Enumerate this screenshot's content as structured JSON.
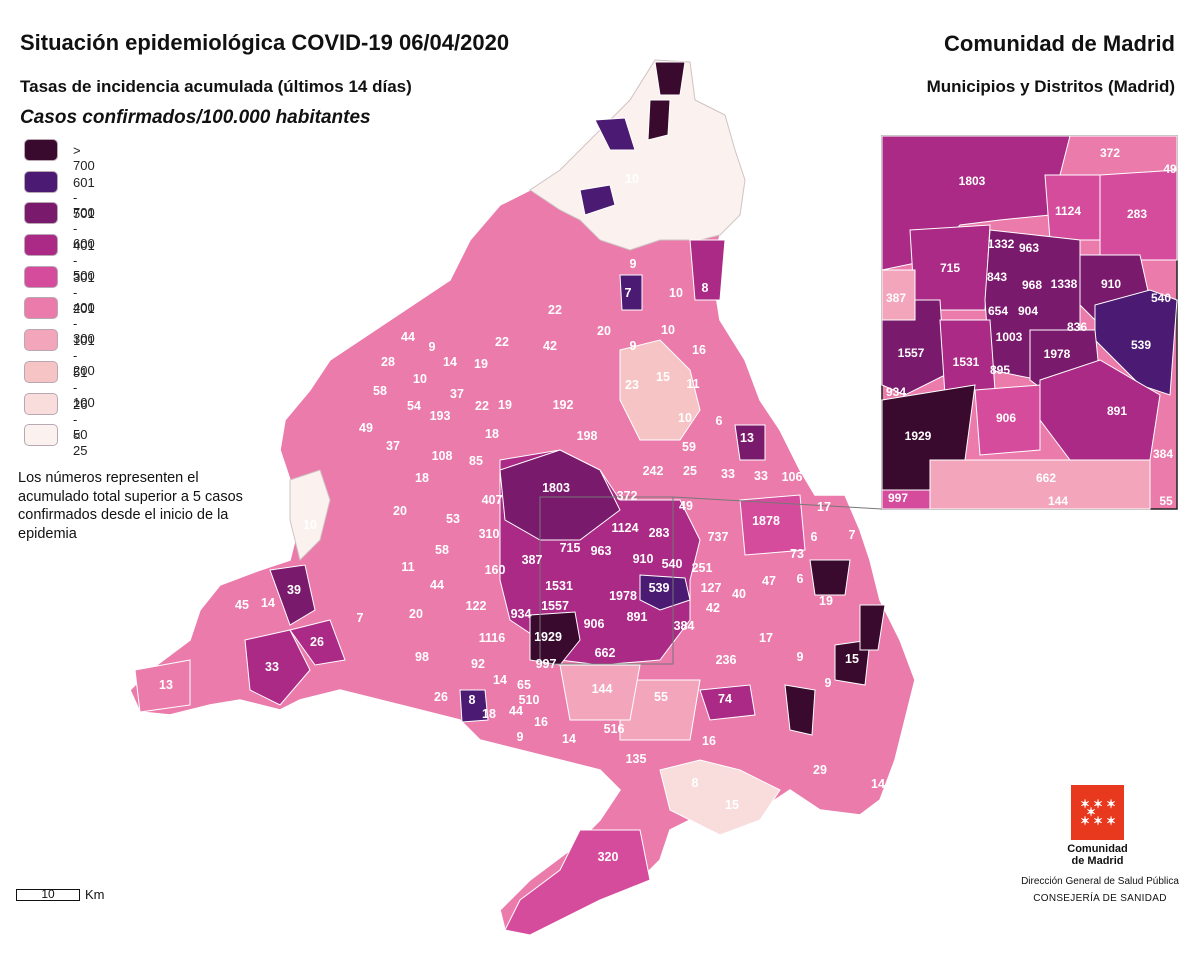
{
  "header": {
    "title": "Situación epidemiológica COVID-19  06/04/2020",
    "subtitle": "Tasas de incidencia acumulada (últimos 14 días)",
    "units": "Casos confirmados/100.000 habitantes",
    "region": "Comunidad de Madrid",
    "region_sub": "Municipios y Distritos (Madrid)"
  },
  "legend": [
    {
      "label": "> 700",
      "color": "#3a0a2e"
    },
    {
      "label": "601 - 700",
      "color": "#4b1a72"
    },
    {
      "label": "501 - 600",
      "color": "#7a1a6c"
    },
    {
      "label": "401 - 500",
      "color": "#aa2a86"
    },
    {
      "label": "301 - 400",
      "color": "#d64c9d"
    },
    {
      "label": "201 - 300",
      "color": "#ea7bab"
    },
    {
      "label": "101 - 200",
      "color": "#f2a5bb"
    },
    {
      "label": "51 - 100",
      "color": "#f6c4c4"
    },
    {
      "label": "26 - 50",
      "color": "#f9dcdc"
    },
    {
      "label": "< 25",
      "color": "#fbf2ef"
    }
  ],
  "note": "Los números representen el acumulado total superior a 5 casos confirmados desde el inicio de la epidemia",
  "scale": {
    "value": "10",
    "unit": "Km"
  },
  "logo": {
    "name_line1": "Comunidad",
    "name_line2": "de Madrid"
  },
  "org": {
    "line1": "Dirección General de Salud Pública",
    "line2": "CONSEJERÍA DE SANIDAD"
  },
  "map_labels": [
    "10",
    "9",
    "7",
    "8",
    "10",
    "22",
    "20",
    "42",
    "9",
    "10",
    "16",
    "44",
    "9",
    "28",
    "10",
    "14",
    "19",
    "22",
    "58",
    "54",
    "37",
    "22",
    "19",
    "193",
    "23",
    "15",
    "11",
    "192",
    "18",
    "10",
    "6",
    "13",
    "49",
    "37",
    "108",
    "85",
    "198",
    "59",
    "242",
    "25",
    "33",
    "33",
    "106",
    "18",
    "1803",
    "372",
    "49",
    "20",
    "53",
    "407",
    "1124",
    "283",
    "737",
    "1878",
    "17",
    "10",
    "310",
    "715",
    "963",
    "910",
    "540",
    "251",
    "6",
    "58",
    "387",
    "7",
    "160",
    "73",
    "6",
    "11",
    "1531",
    "1978",
    "539",
    "127",
    "47",
    "45",
    "14",
    "39",
    "44",
    "122",
    "1557",
    "934",
    "906",
    "891",
    "42",
    "40",
    "19",
    "7",
    "20",
    "384",
    "26",
    "1929",
    "1116",
    "17",
    "9",
    "15",
    "98",
    "662",
    "236",
    "33",
    "92",
    "997",
    "13",
    "14",
    "65",
    "144",
    "26",
    "8",
    "510",
    "55",
    "74",
    "18",
    "44",
    "9",
    "9",
    "16",
    "14",
    "516",
    "16",
    "29",
    "135",
    "14",
    "8",
    "15",
    "320"
  ],
  "inset_labels": [
    "1803",
    "372",
    "49",
    "1124",
    "283",
    "1332",
    "963",
    "715",
    "843",
    "968",
    "1338",
    "910",
    "540",
    "387",
    "654",
    "904",
    "836",
    "1003",
    "539",
    "1557",
    "1531",
    "895",
    "1978",
    "934",
    "906",
    "891",
    "1929",
    "384",
    "662",
    "997",
    "144",
    "55"
  ]
}
